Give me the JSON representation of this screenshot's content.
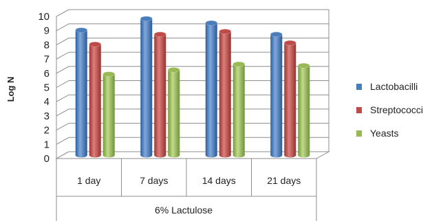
{
  "chart_data": {
    "type": "bar",
    "title": "",
    "ylabel": "Log N",
    "xlabel": "",
    "group_label": "6% Lactulose",
    "categories": [
      "1 day",
      "7 days",
      "14 days",
      "21 days"
    ],
    "ylim": [
      0,
      10
    ],
    "yticks": [
      0,
      1,
      2,
      3,
      4,
      5,
      6,
      7,
      8,
      9,
      10
    ],
    "grid": true,
    "legend_position": "right",
    "series": [
      {
        "name": "Lactobacilli",
        "color": "#4A7EBB",
        "values": [
          8.8,
          9.6,
          9.3,
          8.5
        ]
      },
      {
        "name": "Streptococci",
        "color": "#BE4B48",
        "values": [
          7.8,
          8.5,
          8.7,
          7.9
        ]
      },
      {
        "name": "Yeasts",
        "color": "#98B954",
        "values": [
          5.7,
          6.0,
          6.4,
          6.3
        ]
      }
    ]
  }
}
